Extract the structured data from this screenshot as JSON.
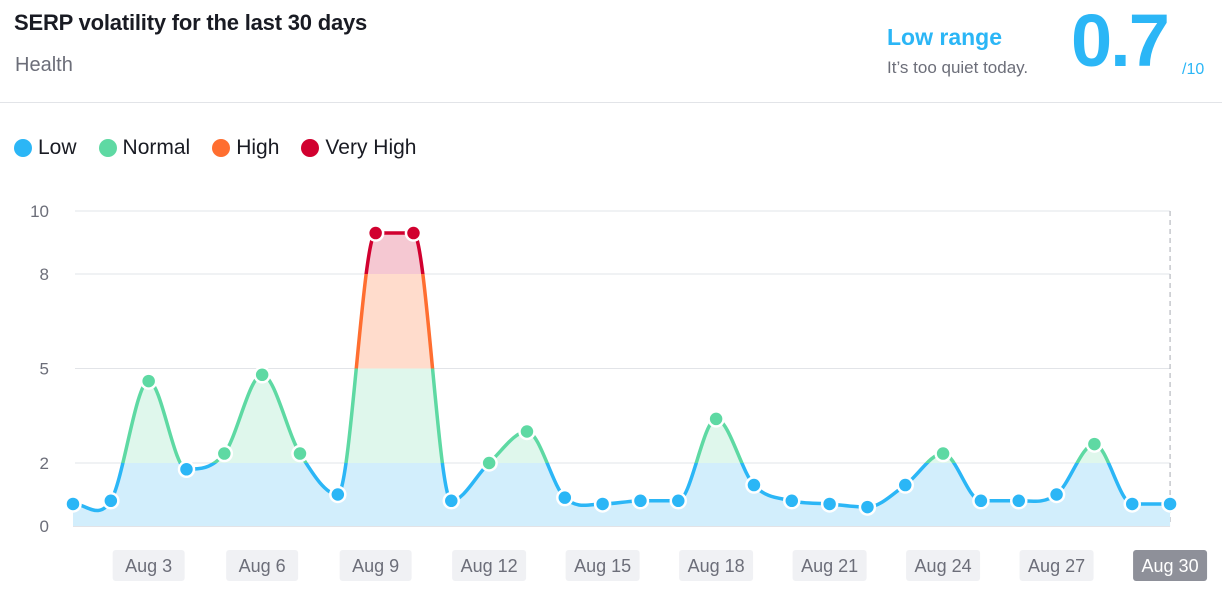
{
  "header": {
    "title": "SERP volatility for the last 30 days",
    "subtitle": "Health",
    "range_label": "Low range",
    "range_desc": "It’s too quiet today.",
    "score": "0.7",
    "score_max": "/10"
  },
  "legend": [
    {
      "label": "Low",
      "color": "#2bb6f6"
    },
    {
      "label": "Normal",
      "color": "#5ed9a3"
    },
    {
      "label": "High",
      "color": "#ff6e30"
    },
    {
      "label": "Very High",
      "color": "#d1002f"
    }
  ],
  "chart_data": {
    "type": "area",
    "title": "SERP volatility for the last 30 days",
    "x": [
      1,
      2,
      3,
      4,
      5,
      6,
      7,
      8,
      9,
      10,
      11,
      12,
      13,
      14,
      15,
      16,
      17,
      18,
      19,
      20,
      21,
      22,
      23,
      24,
      25,
      26,
      27,
      28,
      29,
      30
    ],
    "values": [
      0.7,
      0.8,
      4.6,
      1.8,
      2.3,
      4.8,
      2.3,
      1.0,
      9.3,
      9.3,
      0.8,
      2.0,
      3.0,
      0.9,
      0.7,
      0.8,
      0.8,
      3.4,
      1.3,
      0.8,
      0.7,
      0.6,
      1.3,
      2.3,
      0.8,
      0.8,
      1.0,
      2.6,
      0.7,
      0.7
    ],
    "x_tick_labels": [
      {
        "day": 3,
        "label": "Aug 3"
      },
      {
        "day": 6,
        "label": "Aug 6"
      },
      {
        "day": 9,
        "label": "Aug 9"
      },
      {
        "day": 12,
        "label": "Aug 12"
      },
      {
        "day": 15,
        "label": "Aug 15"
      },
      {
        "day": 18,
        "label": "Aug 18"
      },
      {
        "day": 21,
        "label": "Aug 21"
      },
      {
        "day": 24,
        "label": "Aug 24"
      },
      {
        "day": 27,
        "label": "Aug 27"
      },
      {
        "day": 30,
        "label": "Aug 30"
      }
    ],
    "highlighted_tick": "Aug 30",
    "y_ticks": [
      0,
      2,
      5,
      8,
      10
    ],
    "ylim": [
      0,
      10
    ],
    "thresholds": {
      "low": 2,
      "normal": 5,
      "high": 8
    },
    "xlabel": "",
    "ylabel": "",
    "grid": true
  }
}
